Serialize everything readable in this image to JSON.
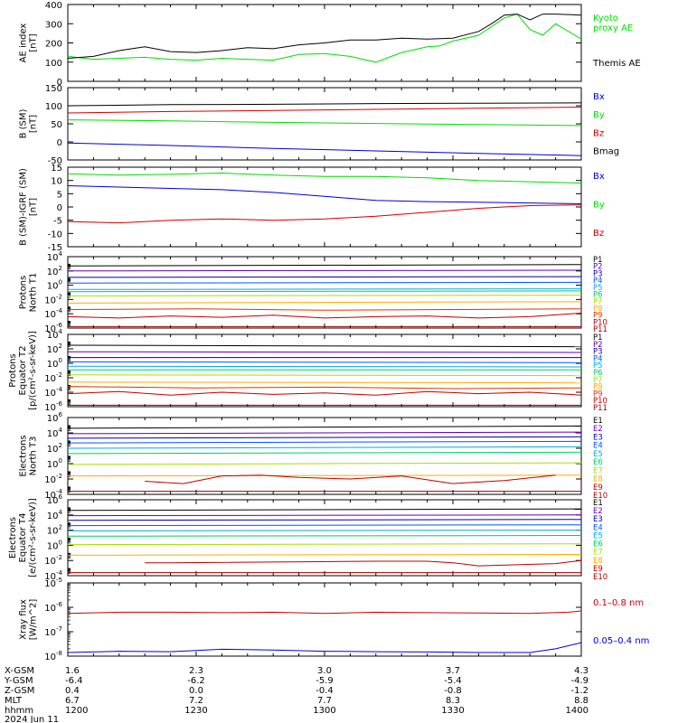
{
  "chart_data": [
    {
      "type": "line",
      "ylabel": [
        "AE index",
        "[nT]"
      ],
      "ylim": [
        0,
        400
      ],
      "yticks": [
        "0",
        "100",
        "200",
        "300",
        "400"
      ],
      "ticks": [
        0,
        100,
        200,
        300,
        400
      ],
      "scale": "linear",
      "series": [
        {
          "name": "Kyoto proxy AE",
          "label_lines": [
            "Kyoto",
            "proxy AE"
          ],
          "color": "#00dd00",
          "x": [
            0,
            10,
            20,
            30,
            40,
            50,
            60,
            70,
            80,
            90,
            100,
            110,
            120,
            130,
            140,
            145,
            150,
            160,
            170,
            175,
            180,
            185,
            190,
            200
          ],
          "y": [
            130,
            115,
            120,
            125,
            115,
            110,
            120,
            115,
            110,
            140,
            145,
            130,
            100,
            150,
            180,
            185,
            210,
            240,
            330,
            350,
            270,
            240,
            300,
            220
          ]
        },
        {
          "name": "Themis AE",
          "label_lines": [
            "Themis AE"
          ],
          "color": "#000000",
          "x": [
            0,
            10,
            20,
            30,
            40,
            50,
            60,
            70,
            80,
            90,
            100,
            110,
            120,
            130,
            140,
            150,
            160,
            165,
            170,
            175,
            180,
            185,
            190,
            200
          ],
          "y": [
            120,
            130,
            160,
            180,
            155,
            150,
            160,
            175,
            170,
            190,
            200,
            215,
            215,
            225,
            220,
            225,
            260,
            300,
            345,
            350,
            320,
            350,
            350,
            345
          ]
        }
      ]
    },
    {
      "type": "line",
      "ylabel": [
        "B (SM)",
        "[nT]"
      ],
      "ylim": [
        -50,
        150
      ],
      "yticks": [
        "-50",
        "0",
        "50",
        "100",
        "150"
      ],
      "ticks": [
        -50,
        0,
        50,
        100,
        150
      ],
      "scale": "linear",
      "series": [
        {
          "name": "Bx",
          "color": "#0000cc",
          "x": [
            0,
            40,
            80,
            120,
            160,
            200
          ],
          "y": [
            -3,
            -10,
            -18,
            -25,
            -32,
            -38
          ]
        },
        {
          "name": "By",
          "color": "#00dd00",
          "x": [
            0,
            40,
            80,
            120,
            160,
            200
          ],
          "y": [
            61,
            58,
            54,
            51,
            48,
            45
          ]
        },
        {
          "name": "Bz",
          "color": "#cc0000",
          "x": [
            0,
            40,
            80,
            120,
            160,
            200
          ],
          "y": [
            80,
            84,
            87,
            90,
            93,
            96
          ]
        },
        {
          "name": "Bmag",
          "color": "#000000",
          "x": [
            0,
            40,
            80,
            120,
            160,
            200
          ],
          "y": [
            100,
            103,
            104,
            106,
            107,
            108
          ]
        }
      ]
    },
    {
      "type": "line",
      "ylabel": [
        "B (SM)-IGRF (SM)",
        "[nT]"
      ],
      "ylim": [
        -15,
        15
      ],
      "yticks": [
        "-15",
        "-10",
        "-5",
        "0",
        "5",
        "10",
        "15"
      ],
      "ticks": [
        -15,
        -10,
        -5,
        0,
        5,
        10,
        15
      ],
      "scale": "linear",
      "series": [
        {
          "name": "Bx",
          "color": "#0000cc",
          "x": [
            0,
            20,
            40,
            60,
            80,
            100,
            120,
            140,
            160,
            180,
            200
          ],
          "y": [
            8,
            7.5,
            7,
            6.5,
            5.5,
            4,
            2.5,
            2,
            1.8,
            1.5,
            1.2
          ]
        },
        {
          "name": "By",
          "color": "#00dd00",
          "x": [
            0,
            20,
            40,
            60,
            80,
            100,
            120,
            140,
            160,
            180,
            200
          ],
          "y": [
            12.5,
            12,
            12.3,
            12.8,
            12,
            11.5,
            11.5,
            11,
            10,
            9.5,
            9
          ]
        },
        {
          "name": "Bz",
          "color": "#cc0000",
          "x": [
            0,
            20,
            40,
            60,
            80,
            100,
            120,
            140,
            160,
            180,
            200
          ],
          "y": [
            -5.5,
            -6,
            -5,
            -4.5,
            -5,
            -4.5,
            -3.5,
            -2,
            -0.5,
            0.5,
            0.8
          ]
        }
      ]
    },
    {
      "type": "line",
      "ylabel": [
        "Protons",
        "North T1"
      ],
      "ylim": [
        -6,
        4
      ],
      "yticks": [
        "10^-6",
        "10^-4",
        "10^-2",
        "10^0",
        "10^2",
        "10^4"
      ],
      "ticks": [
        -6,
        -4,
        -2,
        0,
        2,
        4
      ],
      "scale": "log",
      "series": [
        {
          "name": "P1",
          "color": "#000000",
          "x": [
            0,
            200
          ],
          "y": [
            2.7,
            2.9
          ]
        },
        {
          "name": "P2",
          "color": "#6600aa",
          "x": [
            0,
            200
          ],
          "y": [
            2.0,
            2.1
          ]
        },
        {
          "name": "P3",
          "color": "#000099",
          "x": [
            0,
            200
          ],
          "y": [
            1.1,
            1.2
          ]
        },
        {
          "name": "P4",
          "color": "#0055ff",
          "x": [
            0,
            200
          ],
          "y": [
            0.3,
            0.4
          ]
        },
        {
          "name": "P5",
          "color": "#00aadd",
          "x": [
            0,
            200
          ],
          "y": [
            -0.6,
            -0.5
          ]
        },
        {
          "name": "P6",
          "color": "#00cc66",
          "x": [
            0,
            200
          ],
          "y": [
            -0.9,
            -0.8
          ]
        },
        {
          "name": "P7",
          "color": "#aadd00",
          "x": [
            0,
            200
          ],
          "y": [
            -1.5,
            -1.4
          ]
        },
        {
          "name": "P8",
          "color": "#ffaa00",
          "x": [
            0,
            200
          ],
          "y": [
            -2.5,
            -2.3
          ]
        },
        {
          "name": "P9",
          "color": "#dd3300",
          "x": [
            0,
            50,
            100,
            150,
            200
          ],
          "y": [
            -3.4,
            -3.3,
            -3.5,
            -3.4,
            -3.3
          ]
        },
        {
          "name": "P10",
          "color": "#bb0000",
          "x": [
            0,
            20,
            40,
            60,
            80,
            100,
            120,
            140,
            160,
            180,
            200
          ],
          "y": [
            -4.4,
            -4.6,
            -4.3,
            -4.5,
            -4.2,
            -4.6,
            -4.4,
            -4.3,
            -4.6,
            -4.4,
            -3.9
          ]
        },
        {
          "name": "P11",
          "color": "#990000",
          "x": [
            0,
            200
          ],
          "y": [
            -5.8,
            -5.8
          ]
        }
      ]
    },
    {
      "type": "line",
      "ylabel": [
        "Protons",
        "Equator T2",
        "[p/(cm²-s-sr-keV)]"
      ],
      "ylim": [
        -6,
        4
      ],
      "yticks": [
        "10^-6",
        "10^-4",
        "10^-2",
        "10^0",
        "10^2",
        "10^4"
      ],
      "ticks": [
        -6,
        -4,
        -2,
        0,
        2,
        4
      ],
      "scale": "log",
      "series": [
        {
          "name": "P1",
          "color": "#000000",
          "x": [
            0,
            200
          ],
          "y": [
            2.5,
            2.3
          ]
        },
        {
          "name": "P2",
          "color": "#6600aa",
          "x": [
            0,
            200
          ],
          "y": [
            1.6,
            1.5
          ]
        },
        {
          "name": "P3",
          "color": "#000099",
          "x": [
            0,
            200
          ],
          "y": [
            0.8,
            0.8
          ]
        },
        {
          "name": "P4",
          "color": "#0055ff",
          "x": [
            0,
            200
          ],
          "y": [
            0.2,
            0.1
          ]
        },
        {
          "name": "P5",
          "color": "#00aadd",
          "x": [
            0,
            200
          ],
          "y": [
            -0.4,
            -0.5
          ]
        },
        {
          "name": "P6",
          "color": "#00cc66",
          "x": [
            0,
            200
          ],
          "y": [
            -0.9,
            -0.9
          ]
        },
        {
          "name": "P7",
          "color": "#aadd00",
          "x": [
            0,
            200
          ],
          "y": [
            -1.6,
            -1.7
          ]
        },
        {
          "name": "P8",
          "color": "#ffaa00",
          "x": [
            0,
            200
          ],
          "y": [
            -2.6,
            -2.7
          ]
        },
        {
          "name": "P9",
          "color": "#dd3300",
          "x": [
            0,
            50,
            100,
            150,
            200
          ],
          "y": [
            -3.2,
            -3.4,
            -3.3,
            -3.5,
            -3.4
          ]
        },
        {
          "name": "P10",
          "color": "#bb0000",
          "x": [
            0,
            20,
            40,
            60,
            80,
            100,
            120,
            140,
            160,
            180,
            200
          ],
          "y": [
            -4.2,
            -3.9,
            -4.4,
            -4.0,
            -4.3,
            -4.1,
            -4.4,
            -3.9,
            -4.2,
            -4.0,
            -4.4
          ]
        },
        {
          "name": "P11",
          "color": "#990000",
          "x": [
            0,
            200
          ],
          "y": [
            -5.8,
            -5.8
          ]
        }
      ]
    },
    {
      "type": "line",
      "ylabel": [
        "Electrons",
        "North T3"
      ],
      "ylim": [
        -4,
        6
      ],
      "yticks": [
        "10^-4",
        "10^-2",
        "10^0",
        "10^2",
        "10^4",
        "10^6"
      ],
      "ticks": [
        -4,
        -2,
        0,
        2,
        4,
        6
      ],
      "scale": "log",
      "series": [
        {
          "name": "E1",
          "color": "#000000",
          "x": [
            0,
            200
          ],
          "y": [
            4.6,
            4.9
          ]
        },
        {
          "name": "E2",
          "color": "#6600aa",
          "x": [
            0,
            200
          ],
          "y": [
            3.9,
            4.1
          ]
        },
        {
          "name": "E3",
          "color": "#000099",
          "x": [
            0,
            200
          ],
          "y": [
            3.3,
            3.5
          ]
        },
        {
          "name": "E4",
          "color": "#0055ff",
          "x": [
            0,
            200
          ],
          "y": [
            2.7,
            2.9
          ]
        },
        {
          "name": "E5",
          "color": "#00aadd",
          "x": [
            0,
            200
          ],
          "y": [
            2.0,
            2.2
          ]
        },
        {
          "name": "E6",
          "color": "#00cc66",
          "x": [
            0,
            200
          ],
          "y": [
            1.3,
            1.5
          ]
        },
        {
          "name": "E7",
          "color": "#aadd00",
          "x": [
            0,
            200
          ],
          "y": [
            -0.1,
            0.1
          ]
        },
        {
          "name": "E8",
          "color": "#ffaa00",
          "x": [
            0,
            200
          ],
          "y": [
            -1.6,
            -1.5
          ]
        },
        {
          "name": "E9",
          "color": "#bb0000",
          "x": [
            30,
            45,
            60,
            75,
            90,
            110,
            130,
            150,
            170,
            190
          ],
          "y": [
            -2.3,
            -2.6,
            -1.6,
            -1.5,
            -1.8,
            -2.0,
            -1.6,
            -2.6,
            -2.2,
            -1.5
          ]
        },
        {
          "name": "E10",
          "color": "#990000",
          "x": [
            0,
            200
          ],
          "y": [
            -3.6,
            -3.6
          ]
        }
      ]
    },
    {
      "type": "line",
      "ylabel": [
        "Electrons",
        "Equator T4",
        "[e/(cm²-s-sr-keV)]"
      ],
      "ylim": [
        -4,
        6
      ],
      "yticks": [
        "10^-4",
        "10^-2",
        "10^0",
        "10^2",
        "10^4",
        "10^6"
      ],
      "ticks": [
        -4,
        -2,
        0,
        2,
        4,
        6
      ],
      "scale": "log",
      "series": [
        {
          "name": "E1",
          "color": "#000000",
          "x": [
            0,
            200
          ],
          "y": [
            4.6,
            4.8
          ]
        },
        {
          "name": "E2",
          "color": "#6600aa",
          "x": [
            0,
            200
          ],
          "y": [
            3.9,
            4.0
          ]
        },
        {
          "name": "E3",
          "color": "#000099",
          "x": [
            0,
            200
          ],
          "y": [
            3.3,
            3.4
          ]
        },
        {
          "name": "E4",
          "color": "#0055ff",
          "x": [
            0,
            200
          ],
          "y": [
            2.6,
            2.7
          ]
        },
        {
          "name": "E5",
          "color": "#00aadd",
          "x": [
            0,
            200
          ],
          "y": [
            1.9,
            2.0
          ]
        },
        {
          "name": "E6",
          "color": "#00cc66",
          "x": [
            0,
            200
          ],
          "y": [
            1.2,
            1.3
          ]
        },
        {
          "name": "E7",
          "color": "#aadd00",
          "x": [
            0,
            200
          ],
          "y": [
            0.1,
            0.2
          ]
        },
        {
          "name": "E8",
          "color": "#ffaa00",
          "x": [
            0,
            200
          ],
          "y": [
            -1.3,
            -1.2
          ]
        },
        {
          "name": "E9",
          "color": "#bb0000",
          "x": [
            30,
            40,
            120,
            140,
            150,
            160,
            190,
            200
          ],
          "y": [
            -2.3,
            -2.3,
            -2.1,
            -2.1,
            -2.3,
            -2.7,
            -2.4,
            -2.0
          ]
        },
        {
          "name": "E10",
          "color": "#990000",
          "x": [
            0,
            200
          ],
          "y": [
            -3.6,
            -3.6
          ]
        }
      ]
    },
    {
      "type": "line",
      "ylabel": [
        "Xray flux",
        "[W/m^2]"
      ],
      "ylim": [
        -8,
        -5
      ],
      "yticks": [
        "10^-8",
        "10^-7",
        "10^-6",
        "10^-5"
      ],
      "ticks": [
        -8,
        -7,
        -6,
        -5
      ],
      "scale": "log",
      "series": [
        {
          "name": "0.1–0.8 nm",
          "color": "#cc0000",
          "x": [
            0,
            20,
            40,
            60,
            80,
            100,
            120,
            140,
            160,
            180,
            195,
            200
          ],
          "y": [
            -6.25,
            -6.2,
            -6.2,
            -6.22,
            -6.2,
            -6.25,
            -6.2,
            -6.22,
            -6.23,
            -6.25,
            -6.2,
            -6.15
          ]
        },
        {
          "name": "0.05–0.4 nm",
          "color": "#0000cc",
          "x": [
            0,
            20,
            40,
            60,
            80,
            100,
            120,
            140,
            160,
            180,
            190,
            200
          ],
          "y": [
            -7.85,
            -7.8,
            -7.82,
            -7.72,
            -7.75,
            -7.8,
            -7.82,
            -7.83,
            -7.85,
            -7.85,
            -7.7,
            -7.45
          ]
        }
      ]
    }
  ],
  "x_axis": {
    "row_labels": [
      "X-GSM",
      "Y-GSM",
      "Z-GSM",
      "MLT",
      "hhmm"
    ],
    "date": "2024 Jun 11",
    "columns": [
      {
        "x": 0,
        "values": [
          "1.6",
          "-6.4",
          "0.4",
          "6.7",
          "1200"
        ]
      },
      {
        "x": 50,
        "values": [
          "2.3",
          "-6.2",
          "0.0",
          "7.2",
          "1230"
        ]
      },
      {
        "x": 100,
        "values": [
          "3.0",
          "-5.9",
          "-0.4",
          "7.7",
          "1300"
        ]
      },
      {
        "x": 150,
        "values": [
          "3.7",
          "-5.4",
          "-0.8",
          "8.3",
          "1330"
        ]
      },
      {
        "x": 200,
        "values": [
          "4.3",
          "-4.9",
          "-1.2",
          "8.8",
          "1400"
        ]
      }
    ]
  }
}
